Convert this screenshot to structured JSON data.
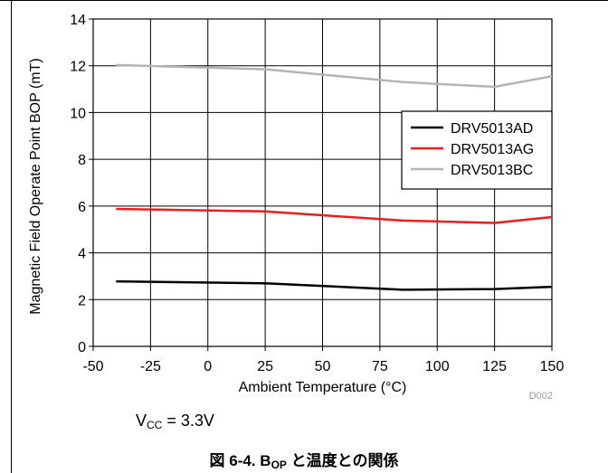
{
  "chart_data": {
    "type": "line",
    "title": "",
    "xlabel": "Ambient Temperature (°C)",
    "ylabel": "Magnetic Field Operate Point BOP (mT)",
    "xlim": [
      -50,
      150
    ],
    "ylim": [
      0,
      14
    ],
    "xticks": [
      -50,
      -25,
      0,
      25,
      50,
      75,
      100,
      125,
      150
    ],
    "yticks": [
      0,
      2,
      4,
      6,
      8,
      10,
      12,
      14
    ],
    "grid": true,
    "legend_position": "right",
    "series": [
      {
        "name": "DRV5013AD",
        "color": "#000000",
        "x": [
          -40,
          25,
          85,
          125,
          150
        ],
        "y": [
          2.78,
          2.7,
          2.42,
          2.45,
          2.55
        ]
      },
      {
        "name": "DRV5013AG",
        "color": "#ee1c1c",
        "x": [
          -40,
          25,
          85,
          125,
          150
        ],
        "y": [
          5.88,
          5.77,
          5.38,
          5.28,
          5.53
        ]
      },
      {
        "name": "DRV5013BC",
        "color": "#b4b4b4",
        "x": [
          -40,
          25,
          85,
          125,
          150
        ],
        "y": [
          12.03,
          11.85,
          11.3,
          11.1,
          11.55
        ]
      }
    ],
    "chart_id": "D002"
  },
  "condition": {
    "prefix": "V",
    "subscript": "CC",
    "suffix": " = 3.3V"
  },
  "caption": {
    "prefix": "図 6-4. B",
    "subscript": "OP",
    "suffix": " と温度との関係"
  }
}
